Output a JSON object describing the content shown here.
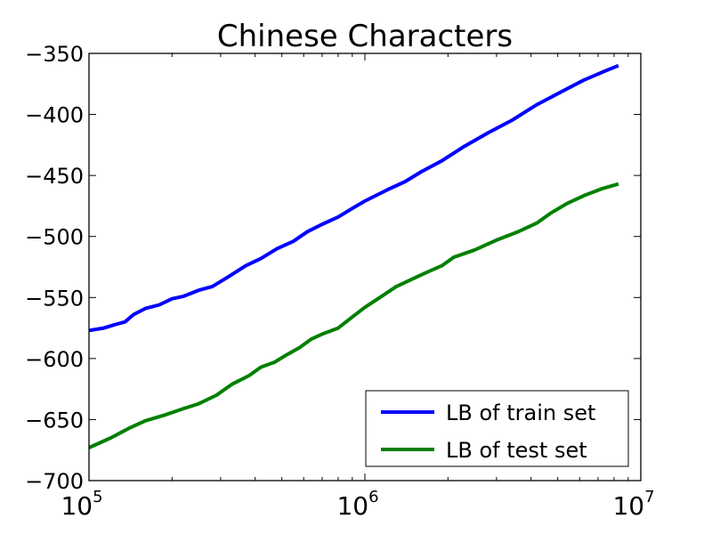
{
  "chart_data": {
    "type": "line",
    "title": "Chinese Characters",
    "xlabel": "",
    "ylabel": "",
    "xscale": "log",
    "xlim": [
      100000,
      10000000
    ],
    "ylim": [
      -700,
      -350
    ],
    "grid": false,
    "legend_position": "bottom-right",
    "x_ticks": [
      {
        "base": "10",
        "exp": "5",
        "value": 100000
      },
      {
        "base": "10",
        "exp": "6",
        "value": 1000000
      },
      {
        "base": "10",
        "exp": "7",
        "value": 10000000
      }
    ],
    "y_ticks": [
      {
        "label": "−350",
        "value": -350
      },
      {
        "label": "−400",
        "value": -400
      },
      {
        "label": "−450",
        "value": -450
      },
      {
        "label": "−500",
        "value": -500
      },
      {
        "label": "−550",
        "value": -550
      },
      {
        "label": "−600",
        "value": -600
      },
      {
        "label": "−650",
        "value": -650
      },
      {
        "label": "−700",
        "value": -700
      }
    ],
    "series": [
      {
        "name": "LB of train set",
        "color": "#0000ff",
        "points": [
          [
            100000,
            -577
          ],
          [
            113000,
            -575
          ],
          [
            125000,
            -572
          ],
          [
            135000,
            -570
          ],
          [
            145000,
            -564
          ],
          [
            160000,
            -559
          ],
          [
            180000,
            -556
          ],
          [
            200000,
            -551
          ],
          [
            220000,
            -549
          ],
          [
            250000,
            -544
          ],
          [
            280000,
            -541
          ],
          [
            320000,
            -533
          ],
          [
            370000,
            -524
          ],
          [
            420000,
            -518
          ],
          [
            480000,
            -510
          ],
          [
            550000,
            -504
          ],
          [
            620000,
            -496
          ],
          [
            700000,
            -490
          ],
          [
            800000,
            -484
          ],
          [
            900000,
            -477
          ],
          [
            1000000,
            -471
          ],
          [
            1200000,
            -462
          ],
          [
            1400000,
            -455
          ],
          [
            1600000,
            -447
          ],
          [
            1900000,
            -438
          ],
          [
            2300000,
            -426
          ],
          [
            2800000,
            -415
          ],
          [
            3400000,
            -405
          ],
          [
            4200000,
            -392
          ],
          [
            5100000,
            -382
          ],
          [
            6200000,
            -372
          ],
          [
            7500000,
            -364
          ],
          [
            8300000,
            -360
          ]
        ]
      },
      {
        "name": "LB of test set",
        "color": "#008000",
        "points": [
          [
            100000,
            -673
          ],
          [
            120000,
            -665
          ],
          [
            140000,
            -657
          ],
          [
            160000,
            -651
          ],
          [
            190000,
            -646
          ],
          [
            220000,
            -641
          ],
          [
            250000,
            -637
          ],
          [
            290000,
            -630
          ],
          [
            330000,
            -621
          ],
          [
            380000,
            -614
          ],
          [
            420000,
            -607
          ],
          [
            470000,
            -603
          ],
          [
            520000,
            -597
          ],
          [
            580000,
            -591
          ],
          [
            640000,
            -584
          ],
          [
            700000,
            -580
          ],
          [
            800000,
            -575
          ],
          [
            900000,
            -566
          ],
          [
            1000000,
            -558
          ],
          [
            1150000,
            -549
          ],
          [
            1300000,
            -541
          ],
          [
            1450000,
            -536
          ],
          [
            1650000,
            -530
          ],
          [
            1900000,
            -524
          ],
          [
            2100000,
            -517
          ],
          [
            2500000,
            -511
          ],
          [
            3000000,
            -503
          ],
          [
            3600000,
            -496
          ],
          [
            4200000,
            -489
          ],
          [
            4700000,
            -481
          ],
          [
            5400000,
            -473
          ],
          [
            6300000,
            -466
          ],
          [
            7200000,
            -461
          ],
          [
            8300000,
            -457
          ]
        ]
      }
    ]
  }
}
